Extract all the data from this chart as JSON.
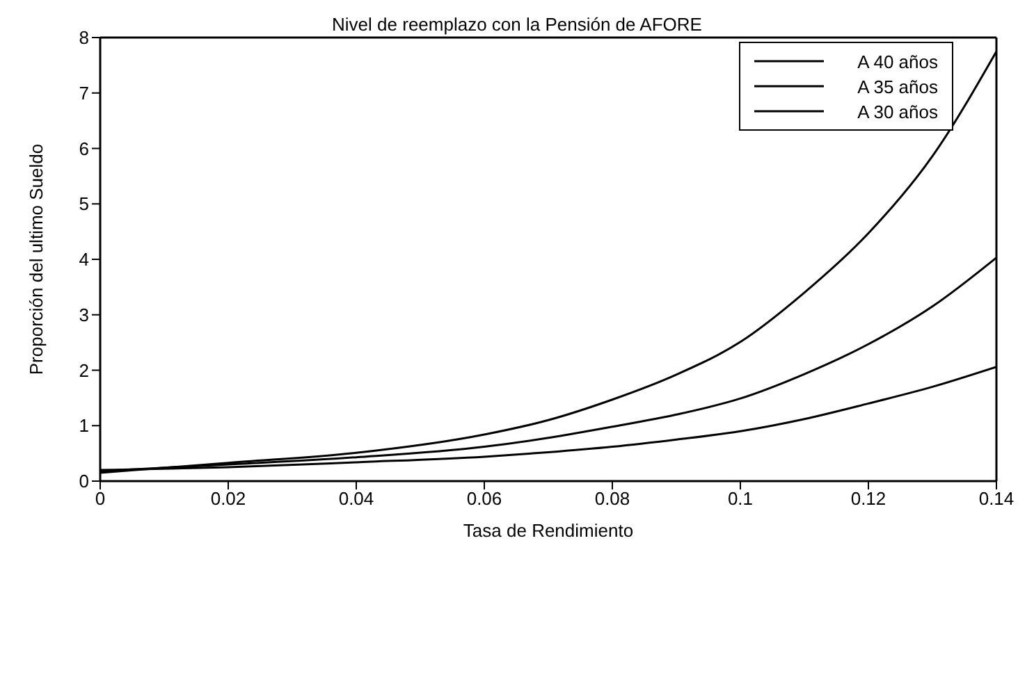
{
  "chart_data": {
    "type": "line",
    "title": "Nivel de reemplazo con la Pensión de AFORE",
    "xlabel": "Tasa de Rendimiento",
    "ylabel": "Proporción del ultimo Sueldo",
    "x": [
      0,
      0.02,
      0.04,
      0.06,
      0.07,
      0.08,
      0.09,
      0.1,
      0.11,
      0.12,
      0.13,
      0.14
    ],
    "series": [
      {
        "name": "A 40 años",
        "color": "#000000",
        "values": [
          0.15,
          0.33,
          0.51,
          0.84,
          1.1,
          1.47,
          1.92,
          2.51,
          3.4,
          4.47,
          5.86,
          7.75
        ]
      },
      {
        "name": "A 35 años",
        "color": "#000000",
        "values": [
          0.18,
          0.3,
          0.43,
          0.62,
          0.78,
          0.98,
          1.2,
          1.49,
          1.93,
          2.47,
          3.15,
          4.03
        ]
      },
      {
        "name": "A 30 años",
        "color": "#000000",
        "values": [
          0.2,
          0.25,
          0.34,
          0.44,
          0.52,
          0.62,
          0.75,
          0.9,
          1.12,
          1.4,
          1.7,
          2.06
        ]
      }
    ],
    "xlim": [
      0,
      0.14
    ],
    "xticks": [
      0,
      0.02,
      0.04,
      0.06,
      0.08,
      0.1,
      0.12,
      0.14
    ],
    "ylim": [
      0,
      8
    ],
    "yticks": [
      0,
      1,
      2,
      3,
      4,
      5,
      6,
      7,
      8
    ],
    "grid": false,
    "legend": "top right",
    "marker": "none",
    "line_style": "solid"
  }
}
